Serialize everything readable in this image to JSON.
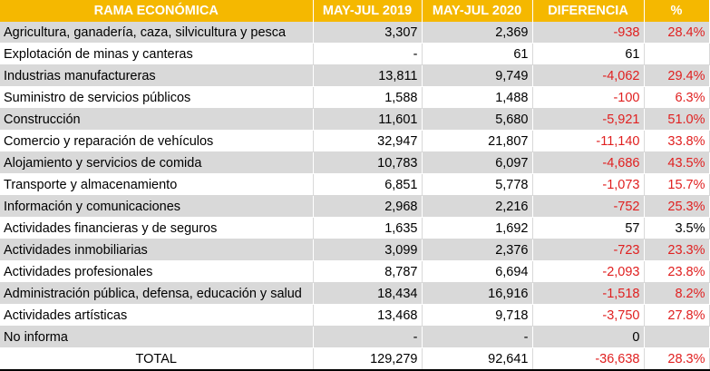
{
  "headers": [
    "RAMA ECONÓMICA",
    "MAY-JUL 2019",
    "MAY-JUL 2020",
    "DIFERENCIA",
    "%"
  ],
  "rows": [
    {
      "rama": "Agricultura, ganadería, caza, silvicultura y pesca",
      "y2019": "3,307",
      "y2020": "2,369",
      "diferencia": "-938",
      "pct": "28.4%"
    },
    {
      "rama": "Explotación de minas y canteras",
      "y2019": "-",
      "y2020": "61",
      "diferencia": "61",
      "pct": ""
    },
    {
      "rama": "Industrias manufactureras",
      "y2019": "13,811",
      "y2020": "9,749",
      "diferencia": "-4,062",
      "pct": "29.4%"
    },
    {
      "rama": "Suministro de servicios públicos",
      "y2019": "1,588",
      "y2020": "1,488",
      "diferencia": "-100",
      "pct": "6.3%"
    },
    {
      "rama": "Construcción",
      "y2019": "11,601",
      "y2020": "5,680",
      "diferencia": "-5,921",
      "pct": "51.0%"
    },
    {
      "rama": "Comercio y reparación de vehículos",
      "y2019": "32,947",
      "y2020": "21,807",
      "diferencia": "-11,140",
      "pct": "33.8%"
    },
    {
      "rama": "Alojamiento y servicios de comida",
      "y2019": "10,783",
      "y2020": "6,097",
      "diferencia": "-4,686",
      "pct": "43.5%"
    },
    {
      "rama": "Transporte y almacenamiento",
      "y2019": "6,851",
      "y2020": "5,778",
      "diferencia": "-1,073",
      "pct": "15.7%"
    },
    {
      "rama": "Información y comunicaciones",
      "y2019": "2,968",
      "y2020": "2,216",
      "diferencia": "-752",
      "pct": "25.3%"
    },
    {
      "rama": "Actividades financieras y de seguros",
      "y2019": "1,635",
      "y2020": "1,692",
      "diferencia": "57",
      "pct": "3.5%"
    },
    {
      "rama": "Actividades inmobiliarias",
      "y2019": "3,099",
      "y2020": "2,376",
      "diferencia": "-723",
      "pct": "23.3%"
    },
    {
      "rama": "Actividades profesionales",
      "y2019": "8,787",
      "y2020": "6,694",
      "diferencia": "-2,093",
      "pct": "23.8%"
    },
    {
      "rama": "Administración pública, defensa, educación y salud",
      "y2019": "18,434",
      "y2020": "16,916",
      "diferencia": "-1,518",
      "pct": "8.2%"
    },
    {
      "rama": "Actividades artísticas",
      "y2019": "13,468",
      "y2020": "9,718",
      "diferencia": "-3,750",
      "pct": "27.8%"
    },
    {
      "rama": "No informa",
      "y2019": "-",
      "y2020": "-",
      "diferencia": "0",
      "pct": ""
    }
  ],
  "total": {
    "rama": "TOTAL",
    "y2019": "129,279",
    "y2020": "92,641",
    "diferencia": "-36,638",
    "pct": "28.3%"
  },
  "colors": {
    "header_bg": "#f5b800",
    "header_text": "#ffffff",
    "stripe": "#d9d9d9",
    "negative": "#e02020"
  }
}
